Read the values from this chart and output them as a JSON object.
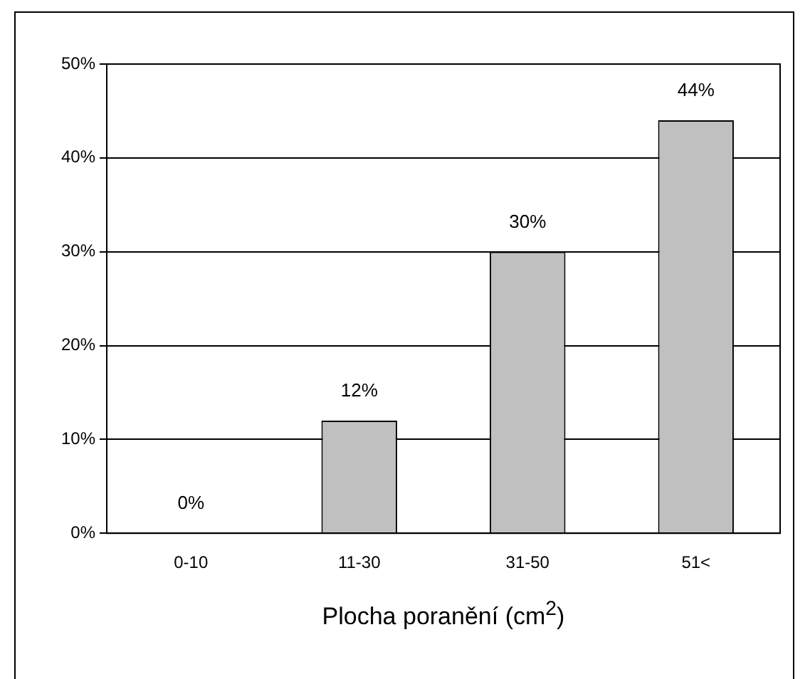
{
  "chart_data": {
    "type": "bar",
    "xlabel": "Plocha poranění (cm$^{2}$)",
    "categories": [
      "0-10",
      "11-30",
      "31-50",
      "51<"
    ],
    "values": [
      0,
      12,
      30,
      44
    ],
    "color": "#c0c0c0",
    "value_labels": [
      "0%",
      "12%",
      "30%",
      "44%"
    ],
    "ylim": [
      0,
      50
    ],
    "yticks": [
      {
        "value": 0,
        "label": "0%"
      },
      {
        "value": 10,
        "label": "10%"
      },
      {
        "value": 20,
        "label": "20%"
      },
      {
        "value": 30,
        "label": "30%"
      },
      {
        "value": 40,
        "label": "40%"
      },
      {
        "value": 50,
        "label": "50%"
      }
    ],
    "grid": "y",
    "legend": false
  }
}
